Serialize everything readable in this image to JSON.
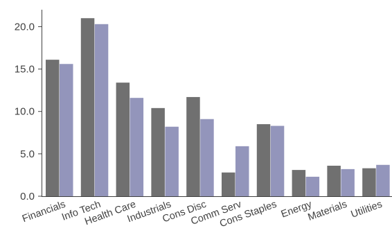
{
  "chart_data": {
    "type": "bar",
    "title": "",
    "xlabel": "",
    "ylabel": "",
    "categories": [
      "Financials",
      "Info Tech",
      "Health Care",
      "Industrials",
      "Cons Disc",
      "Comm Serv",
      "Cons Staples",
      "Energy",
      "Materials",
      "Utilities"
    ],
    "series": [
      {
        "values": [
          16.1,
          21.0,
          13.4,
          10.4,
          11.7,
          2.8,
          8.5,
          3.1,
          3.6,
          3.3
        ],
        "color": "#707070"
      },
      {
        "values": [
          15.6,
          20.3,
          11.6,
          8.2,
          9.1,
          5.9,
          8.3,
          2.3,
          3.2,
          3.7
        ],
        "color": "#9395bb"
      }
    ],
    "ylim": [
      0,
      22
    ],
    "yticks": [
      "0.0",
      "5.0",
      "10.0",
      "15.0",
      "20.0"
    ],
    "grid": false,
    "legend": "none"
  }
}
